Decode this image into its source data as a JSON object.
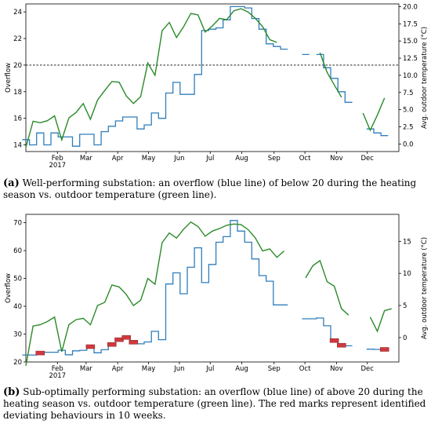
{
  "chart_data": [
    {
      "type": "line",
      "panel": "a",
      "caption_letter": "(a)",
      "caption": "Well-performing substation: an overflow (blue line) of below 20 during the heating season vs. outdoor temperature (green line).",
      "ylabel": "Overflow",
      "y2label": "Avg. outdoor temperature (°C)",
      "ylim": [
        13.5,
        24.6
      ],
      "y2lim": [
        -1.1,
        20.4
      ],
      "xlim": [
        0,
        52
      ],
      "yticks": [
        "14",
        "16",
        "18",
        "20",
        "22",
        "24"
      ],
      "yticks_values": [
        14,
        16,
        18,
        20,
        22,
        24
      ],
      "y2ticks": [
        "0.0",
        "2.5",
        "5.0",
        "7.5",
        "10.0",
        "12.5",
        "15.0",
        "17.5",
        "20.0"
      ],
      "y2ticks_values": [
        0,
        2.5,
        5,
        7.5,
        10,
        12.5,
        15,
        17.5,
        20
      ],
      "xticks": [
        {
          "label": "Feb",
          "week": 4.4
        },
        {
          "label": "Mar",
          "week": 8.4
        },
        {
          "label": "Apr",
          "week": 12.8
        },
        {
          "label": "May",
          "week": 17.1
        },
        {
          "label": "Jun",
          "week": 21.4
        },
        {
          "label": "Jul",
          "week": 25.7
        },
        {
          "label": "Aug",
          "week": 30.1
        },
        {
          "label": "Sep",
          "week": 34.6
        },
        {
          "label": "Oct",
          "week": 38.9
        },
        {
          "label": "Nov",
          "week": 43.3
        },
        {
          "label": "Dec",
          "week": 47.6
        }
      ],
      "year_label": "2017",
      "threshold": 20,
      "series": [
        {
          "role": "overflow",
          "color": "#2f7ebc",
          "values": [
            14.4,
            14.0,
            14.9,
            14.0,
            14.9,
            14.6,
            14.6,
            13.9,
            14.8,
            14.8,
            14.0,
            15.0,
            15.4,
            15.8,
            16.1,
            16.1,
            15.2,
            15.5,
            16.4,
            16.0,
            17.9,
            18.7,
            17.8,
            17.8,
            19.3,
            22.6,
            22.7,
            22.8,
            23.4,
            24.4,
            24.4,
            24.3,
            23.5,
            22.7,
            21.6,
            21.4,
            21.2,
            null,
            null,
            20.8,
            null,
            20.8,
            19.8,
            19.0,
            18.0,
            17.2,
            null,
            null,
            15.2,
            14.9,
            14.7,
            null
          ]
        },
        {
          "role": "temperature",
          "color": "#2a8a2a",
          "values": [
            -0.5,
            3.3,
            3.1,
            3.4,
            4.1,
            0.6,
            3.8,
            4.6,
            5.9,
            3.6,
            6.4,
            7.8,
            9.1,
            9.0,
            7.0,
            5.9,
            6.9,
            11.8,
            10.0,
            16.5,
            17.7,
            15.5,
            17.1,
            19.0,
            18.8,
            16.3,
            17.2,
            18.3,
            18.1,
            19.4,
            19.7,
            19.2,
            18.3,
            17.1,
            15.2,
            14.8,
            null,
            null,
            null,
            null,
            null,
            13.3,
            10.4,
            8.6,
            6.8,
            null,
            null,
            4.5,
            2.0,
            4.2,
            6.7,
            null
          ]
        }
      ]
    },
    {
      "type": "line",
      "panel": "b",
      "caption_letter": "(b)",
      "caption": "Sub-optimally performing substation: an overflow (blue line) of above 20 during the heating season vs. outdoor temperature (green line). The red marks represent identified deviating behaviours in 10 weeks.",
      "ylabel": "Overflow",
      "y2label": "Avg. outdoor temperature (°C)",
      "ylim": [
        20,
        73
      ],
      "y2lim": [
        -3.8,
        19.2
      ],
      "xlim": [
        0,
        52
      ],
      "yticks": [
        "20",
        "30",
        "40",
        "50",
        "60",
        "70"
      ],
      "yticks_values": [
        20,
        30,
        40,
        50,
        60,
        70
      ],
      "y2ticks": [
        "0",
        "5",
        "10",
        "15"
      ],
      "y2ticks_values": [
        0,
        5,
        10,
        15
      ],
      "xticks": [
        {
          "label": "Feb",
          "week": 4.4
        },
        {
          "label": "Mar",
          "week": 8.4
        },
        {
          "label": "Apr",
          "week": 12.8
        },
        {
          "label": "May",
          "week": 17.1
        },
        {
          "label": "Jun",
          "week": 21.4
        },
        {
          "label": "Jul",
          "week": 25.7
        },
        {
          "label": "Aug",
          "week": 30.1
        },
        {
          "label": "Sep",
          "week": 34.6
        },
        {
          "label": "Oct",
          "week": 38.9
        },
        {
          "label": "Nov",
          "week": 43.3
        },
        {
          "label": "Dec",
          "week": 47.6
        }
      ],
      "year_label": "2017",
      "deviation_weeks": [
        2,
        9,
        12,
        13,
        14,
        15,
        43,
        44,
        50,
        51
      ],
      "series": [
        {
          "role": "overflow",
          "color": "#2f7ebc",
          "values": [
            22.5,
            22.5,
            23.2,
            23.5,
            23.5,
            24.2,
            22.6,
            24.0,
            24.2,
            25.5,
            23.3,
            24.4,
            26.3,
            28.0,
            28.8,
            27.1,
            26.5,
            27.2,
            31.0,
            28.0,
            48.0,
            52.0,
            44.5,
            54.0,
            61.0,
            48.5,
            55.0,
            63.0,
            65.0,
            70.8,
            67.0,
            63.0,
            57.0,
            51.0,
            49.0,
            40.5,
            40.5,
            null,
            null,
            35.5,
            35.5,
            35.8,
            33.0,
            27.7,
            26.0,
            25.8,
            null,
            null,
            24.6,
            24.5,
            24.5,
            null
          ]
        },
        {
          "role": "temperature",
          "color": "#2a8a2a",
          "values": [
            -4.4,
            1.8,
            2.0,
            2.5,
            3.2,
            -2.2,
            2.0,
            2.8,
            3.0,
            2.0,
            5.0,
            5.5,
            8.2,
            7.9,
            6.7,
            5.0,
            5.8,
            9.2,
            8.3,
            14.8,
            16.3,
            15.5,
            16.9,
            18.0,
            17.3,
            15.8,
            16.6,
            17.0,
            17.5,
            17.7,
            17.6,
            16.8,
            15.5,
            13.5,
            13.8,
            12.5,
            13.5,
            null,
            null,
            9.3,
            11.2,
            12.0,
            8.7,
            8.0,
            4.5,
            3.5,
            null,
            null,
            3.2,
            1.0,
            4.2,
            4.5
          ]
        }
      ]
    }
  ]
}
